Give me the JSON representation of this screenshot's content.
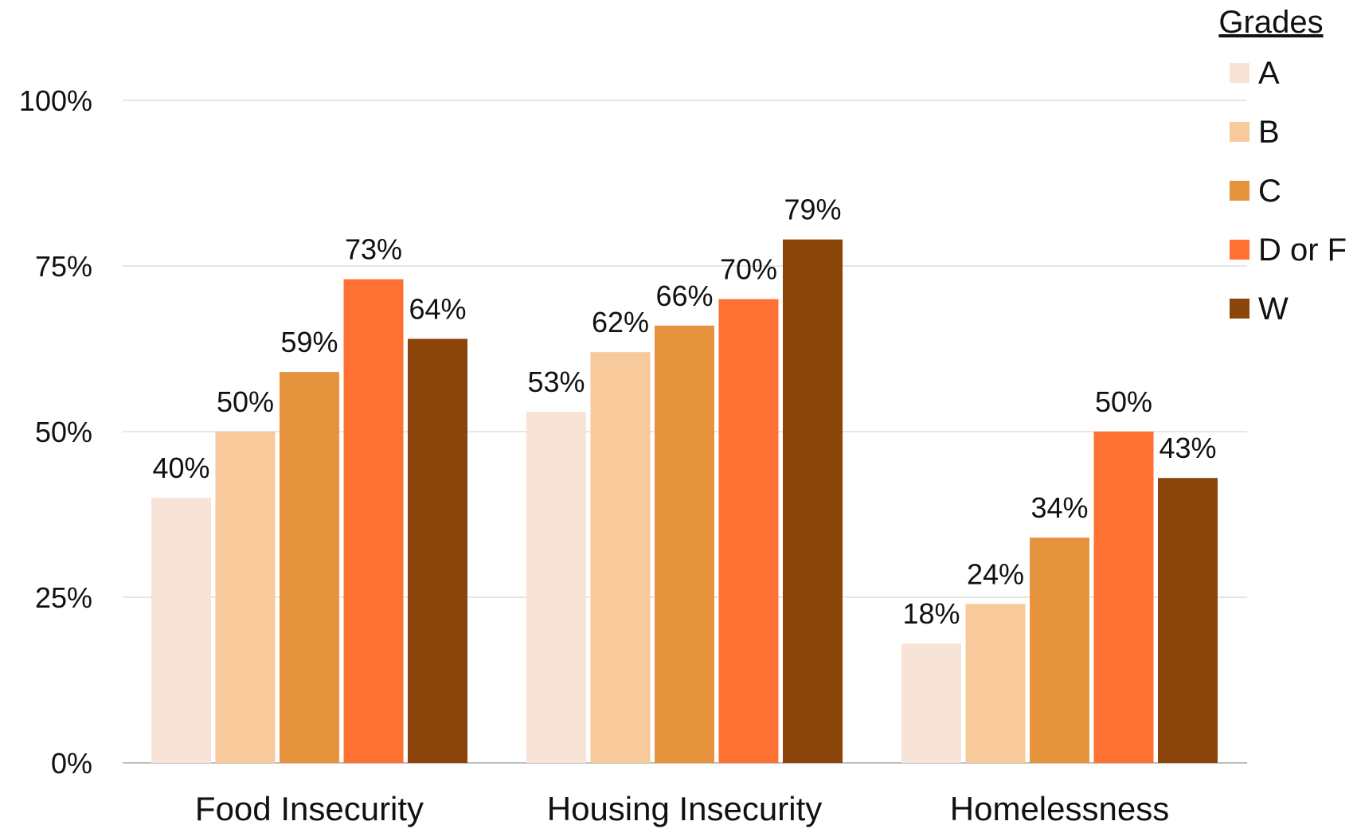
{
  "chart_data": {
    "type": "bar",
    "categories": [
      "Food Insecurity",
      "Housing Insecurity",
      "Homelessness"
    ],
    "series": [
      {
        "name": "A",
        "color": "#F8E3D7",
        "values": [
          40,
          53,
          18
        ]
      },
      {
        "name": "B",
        "color": "#F8C99B",
        "values": [
          50,
          62,
          24
        ]
      },
      {
        "name": "C",
        "color": "#E6933D",
        "values": [
          59,
          66,
          34
        ]
      },
      {
        "name": "D or F",
        "color": "#FF7132",
        "values": [
          73,
          70,
          50
        ]
      },
      {
        "name": "W",
        "color": "#8B4409",
        "values": [
          64,
          79,
          43
        ]
      }
    ],
    "value_labels": [
      [
        "40%",
        "53%",
        "18%"
      ],
      [
        "50%",
        "62%",
        "24%"
      ],
      [
        "59%",
        "66%",
        "34%"
      ],
      [
        "73%",
        "70%",
        "50%"
      ],
      [
        "64%",
        "79%",
        "43%"
      ]
    ],
    "yticks": [
      0,
      25,
      50,
      75,
      100
    ],
    "ytick_labels": [
      "0%",
      "25%",
      "50%",
      "75%",
      "100%"
    ],
    "ylim": [
      0,
      100
    ],
    "legend": {
      "title": "Grades",
      "placement": "top-right"
    },
    "grid": true,
    "gridline_color": "#E6E6E6",
    "baseline_color": "#BFBFBF"
  }
}
